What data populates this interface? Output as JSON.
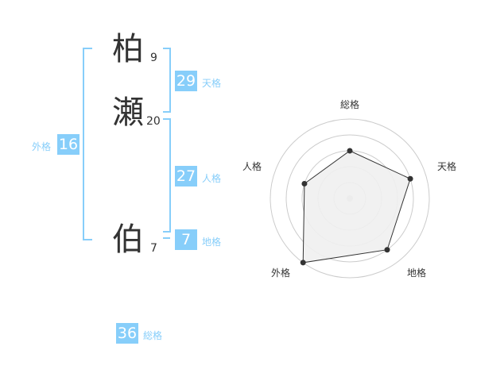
{
  "name": {
    "chars": [
      {
        "char": "柏",
        "strokes": "9"
      },
      {
        "char": "瀬",
        "strokes": "20"
      },
      {
        "char": "伯",
        "strokes": "7"
      }
    ]
  },
  "fortunes": {
    "tenkaku": {
      "label": "天格",
      "value": "29"
    },
    "jinkaku": {
      "label": "人格",
      "value": "27"
    },
    "chikaku": {
      "label": "地格",
      "value": "7"
    },
    "gaikaku": {
      "label": "外格",
      "value": "16"
    },
    "soukaku": {
      "label": "総格",
      "value": "36"
    }
  },
  "chart_data": {
    "type": "radar",
    "axes": [
      "総格",
      "天格",
      "地格",
      "外格",
      "人格"
    ],
    "values": [
      3,
      4,
      4,
      5,
      3
    ],
    "range": [
      0,
      5
    ],
    "rings": 5,
    "colors": {
      "fill": "#f0f0f0",
      "line": "#333333",
      "grid": "#cccccc",
      "accent": "#87cefa"
    }
  }
}
